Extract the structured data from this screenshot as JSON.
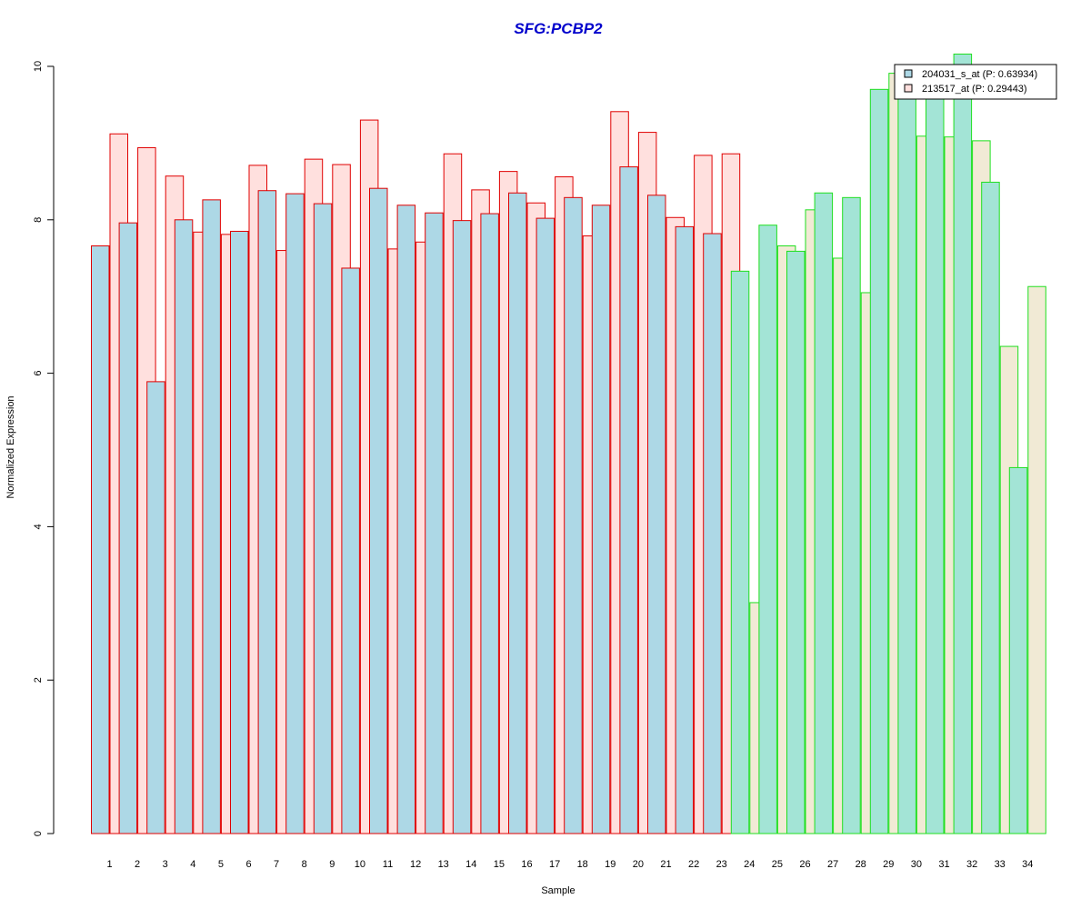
{
  "chart_data": {
    "type": "bar",
    "title": "SFG:PCBP2",
    "xlabel": "Sample",
    "ylabel": "Normalized Expression",
    "ylim": [
      0,
      10
    ],
    "yticks": [
      "0",
      "2",
      "4",
      "6",
      "8",
      "10"
    ],
    "categories": [
      "1",
      "2",
      "3",
      "4",
      "5",
      "6",
      "7",
      "8",
      "9",
      "10",
      "11",
      "12",
      "13",
      "14",
      "15",
      "16",
      "17",
      "18",
      "19",
      "20",
      "21",
      "22",
      "23",
      "24",
      "25",
      "26",
      "27",
      "28",
      "29",
      "30",
      "31",
      "32",
      "33",
      "34"
    ],
    "series": [
      {
        "name": "204031_s_at (P: 0.63934)",
        "values": [
          7.66,
          7.96,
          5.89,
          8.0,
          8.26,
          7.85,
          8.38,
          8.34,
          8.21,
          7.37,
          8.41,
          8.19,
          8.09,
          7.99,
          8.08,
          8.35,
          8.02,
          8.29,
          8.19,
          8.69,
          8.32,
          7.91,
          7.82,
          7.33,
          7.93,
          7.59,
          8.35,
          8.29,
          9.7,
          9.75,
          9.8,
          10.16,
          8.49,
          4.77
        ]
      },
      {
        "name": "213517_at (P: 0.29443)",
        "values": [
          9.12,
          8.94,
          8.57,
          7.84,
          7.81,
          8.71,
          7.6,
          8.79,
          8.72,
          9.3,
          7.62,
          7.71,
          8.86,
          8.39,
          8.63,
          8.22,
          8.56,
          7.79,
          9.41,
          9.14,
          8.03,
          8.84,
          8.86,
          3.01,
          7.66,
          8.13,
          7.5,
          7.05,
          9.91,
          9.09,
          9.08,
          9.03,
          6.35,
          7.13
        ]
      }
    ],
    "groups": [
      {
        "from": 1,
        "to": 23,
        "border": "#e00000",
        "fills": [
          "#add8e6",
          "#ffe0de"
        ]
      },
      {
        "from": 24,
        "to": 34,
        "border": "#1fdf1f",
        "fills": [
          "#a3e4d6",
          "#f1ead5"
        ]
      }
    ],
    "legend": {
      "position": "top-right",
      "entries": [
        "204031_s_at (P: 0.63934)",
        "213517_at (P: 0.29443)"
      ],
      "swatches": [
        "#add8e6",
        "#ffe0de"
      ]
    },
    "title_color": "#0000cc"
  }
}
